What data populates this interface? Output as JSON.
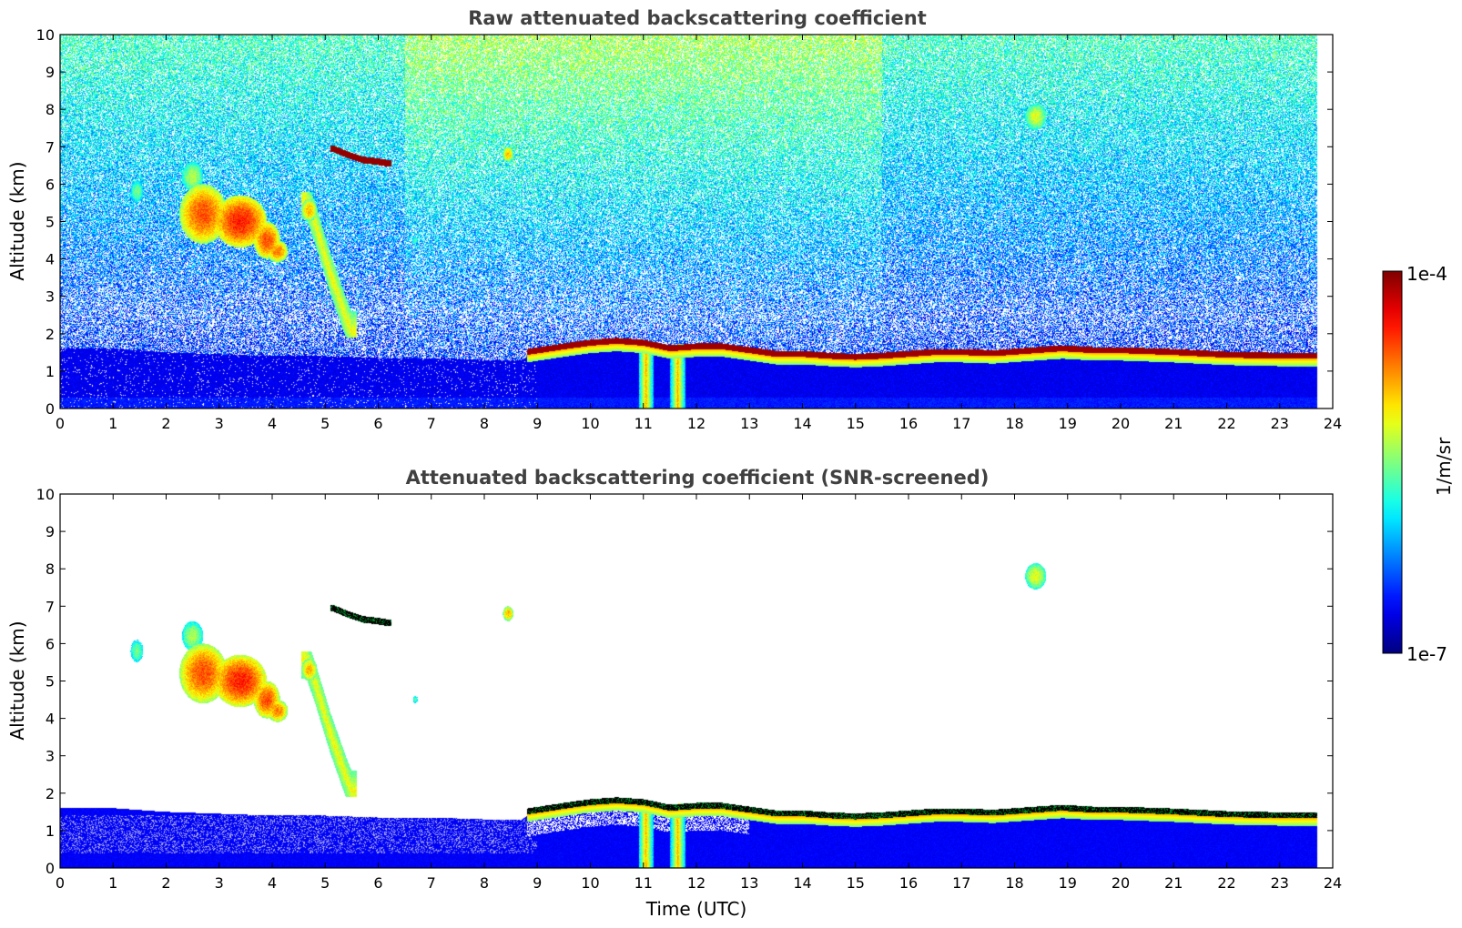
{
  "chart_data": [
    {
      "type": "heatmap",
      "title": "Raw attenuated backscattering coefficient",
      "xlabel": "",
      "ylabel": "Altitude (km)",
      "xlim": [
        0,
        24
      ],
      "ylim": [
        0,
        10
      ],
      "xticks": [
        0,
        1,
        2,
        3,
        4,
        5,
        6,
        7,
        8,
        9,
        10,
        11,
        12,
        13,
        14,
        15,
        16,
        17,
        18,
        19,
        20,
        21,
        22,
        23,
        24
      ],
      "yticks": [
        0,
        1,
        2,
        3,
        4,
        5,
        6,
        7,
        8,
        9,
        10
      ],
      "data_end_time": 23.7,
      "screened": false
    },
    {
      "type": "heatmap",
      "title": "Attenuated backscattering coefficient (SNR-screened)",
      "xlabel": "Time (UTC)",
      "ylabel": "Altitude (km)",
      "xlim": [
        0,
        24
      ],
      "ylim": [
        0,
        10
      ],
      "xticks": [
        0,
        1,
        2,
        3,
        4,
        5,
        6,
        7,
        8,
        9,
        10,
        11,
        12,
        13,
        14,
        15,
        16,
        17,
        18,
        19,
        20,
        21,
        22,
        23,
        24
      ],
      "yticks": [
        0,
        1,
        2,
        3,
        4,
        5,
        6,
        7,
        8,
        9,
        10
      ],
      "data_end_time": 23.7,
      "screened": true
    }
  ],
  "colorbar": {
    "label": "1/m/sr",
    "max_label": "1e-4",
    "min_label": "1e-7",
    "colormap": "jet"
  },
  "features": {
    "boundary_layer_top": [
      [
        0.0,
        1.6
      ],
      [
        1.0,
        1.6
      ],
      [
        2.0,
        1.5
      ],
      [
        3.0,
        1.45
      ],
      [
        4.0,
        1.4
      ],
      [
        5.0,
        1.4
      ],
      [
        6.0,
        1.35
      ],
      [
        7.0,
        1.35
      ],
      [
        8.0,
        1.3
      ],
      [
        8.7,
        1.3
      ],
      [
        9.0,
        1.55
      ],
      [
        9.5,
        1.65
      ],
      [
        10.0,
        1.75
      ],
      [
        10.5,
        1.85
      ],
      [
        11.0,
        1.8
      ],
      [
        11.5,
        1.6
      ],
      [
        12.0,
        1.65
      ],
      [
        12.5,
        1.7
      ],
      [
        13.0,
        1.6
      ],
      [
        13.5,
        1.5
      ],
      [
        14.0,
        1.5
      ],
      [
        14.5,
        1.45
      ],
      [
        15.0,
        1.45
      ],
      [
        15.5,
        1.45
      ],
      [
        16.0,
        1.5
      ],
      [
        16.5,
        1.55
      ],
      [
        17.0,
        1.55
      ],
      [
        17.6,
        1.5
      ],
      [
        18.0,
        1.6
      ],
      [
        18.8,
        1.65
      ],
      [
        19.0,
        1.62
      ],
      [
        20.0,
        1.6
      ],
      [
        21.0,
        1.55
      ],
      [
        22.0,
        1.5
      ],
      [
        23.0,
        1.45
      ],
      [
        23.7,
        1.45
      ]
    ],
    "cloud_top_layer": [
      [
        8.8,
        1.55
      ],
      [
        9.5,
        1.7
      ],
      [
        10.0,
        1.8
      ],
      [
        10.5,
        1.85
      ],
      [
        11.0,
        1.8
      ],
      [
        11.5,
        1.65
      ],
      [
        12.0,
        1.7
      ],
      [
        12.5,
        1.7
      ],
      [
        13.0,
        1.6
      ],
      [
        13.5,
        1.5
      ],
      [
        14.0,
        1.5
      ],
      [
        14.5,
        1.45
      ],
      [
        15.0,
        1.42
      ],
      [
        15.5,
        1.45
      ],
      [
        16.0,
        1.5
      ],
      [
        16.5,
        1.55
      ],
      [
        17.0,
        1.55
      ],
      [
        17.6,
        1.52
      ],
      [
        18.9,
        1.65
      ],
      [
        19.5,
        1.6
      ],
      [
        20.0,
        1.6
      ],
      [
        21.0,
        1.55
      ],
      [
        22.0,
        1.48
      ],
      [
        23.0,
        1.45
      ],
      [
        23.7,
        1.45
      ]
    ],
    "thin_cloud_arc": [
      [
        5.15,
        6.95
      ],
      [
        5.4,
        6.8
      ],
      [
        5.7,
        6.65
      ],
      [
        6.0,
        6.6
      ],
      [
        6.2,
        6.55
      ]
    ],
    "cloud_blobs": [
      {
        "t": 2.7,
        "z": 5.2,
        "rt": 0.45,
        "rz": 0.8,
        "v": 0.8
      },
      {
        "t": 3.4,
        "z": 5.0,
        "rt": 0.5,
        "rz": 0.7,
        "v": 0.85
      },
      {
        "t": 3.9,
        "z": 4.5,
        "rt": 0.25,
        "rz": 0.5,
        "v": 0.8
      },
      {
        "t": 4.1,
        "z": 4.2,
        "rt": 0.2,
        "rz": 0.3,
        "v": 0.75
      },
      {
        "t": 2.5,
        "z": 6.2,
        "rt": 0.2,
        "rz": 0.4,
        "v": 0.55
      },
      {
        "t": 4.7,
        "z": 5.3,
        "rt": 0.15,
        "rz": 0.3,
        "v": 0.7
      },
      {
        "t": 1.45,
        "z": 5.8,
        "rt": 0.12,
        "rz": 0.3,
        "v": 0.5
      },
      {
        "t": 18.4,
        "z": 7.8,
        "rt": 0.2,
        "rz": 0.35,
        "v": 0.6
      },
      {
        "t": 8.45,
        "z": 6.8,
        "rt": 0.1,
        "rz": 0.2,
        "v": 0.7
      },
      {
        "t": 6.7,
        "z": 4.5,
        "rt": 0.05,
        "rz": 0.1,
        "v": 0.45
      }
    ],
    "falling_streak": [
      [
        4.65,
        5.6
      ],
      [
        4.8,
        5.0
      ],
      [
        4.95,
        4.3
      ],
      [
        5.1,
        3.6
      ],
      [
        5.25,
        3.0
      ],
      [
        5.4,
        2.4
      ],
      [
        5.5,
        2.05
      ]
    ],
    "precip_shafts": [
      {
        "t": 11.05,
        "depth": 0.0
      },
      {
        "t": 11.65,
        "depth": 0.0
      }
    ]
  }
}
